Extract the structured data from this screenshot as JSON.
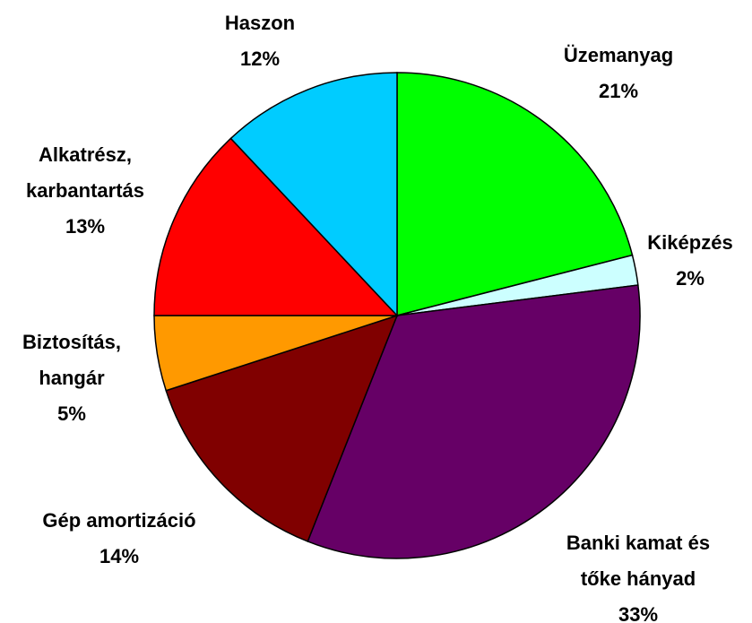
{
  "chart_data": {
    "type": "pie",
    "categories": [
      [
        "Üzemanyag"
      ],
      [
        "Kiképzés"
      ],
      [
        "Banki kamat és",
        "tőke hányad"
      ],
      [
        "Gép amortizáció"
      ],
      [
        "Biztosítás,",
        "hangár"
      ],
      [
        "Alkatrész,",
        "karbantartás"
      ],
      [
        "Haszon"
      ]
    ],
    "values": [
      21,
      2,
      33,
      14,
      5,
      13,
      12
    ],
    "value_labels": [
      "21%",
      "2%",
      "33%",
      "14%",
      "5%",
      "13%",
      "12%"
    ],
    "colors": [
      "#00ff00",
      "#ccffff",
      "#660066",
      "#800000",
      "#ff9900",
      "#ff0000",
      "#00ccff"
    ]
  }
}
